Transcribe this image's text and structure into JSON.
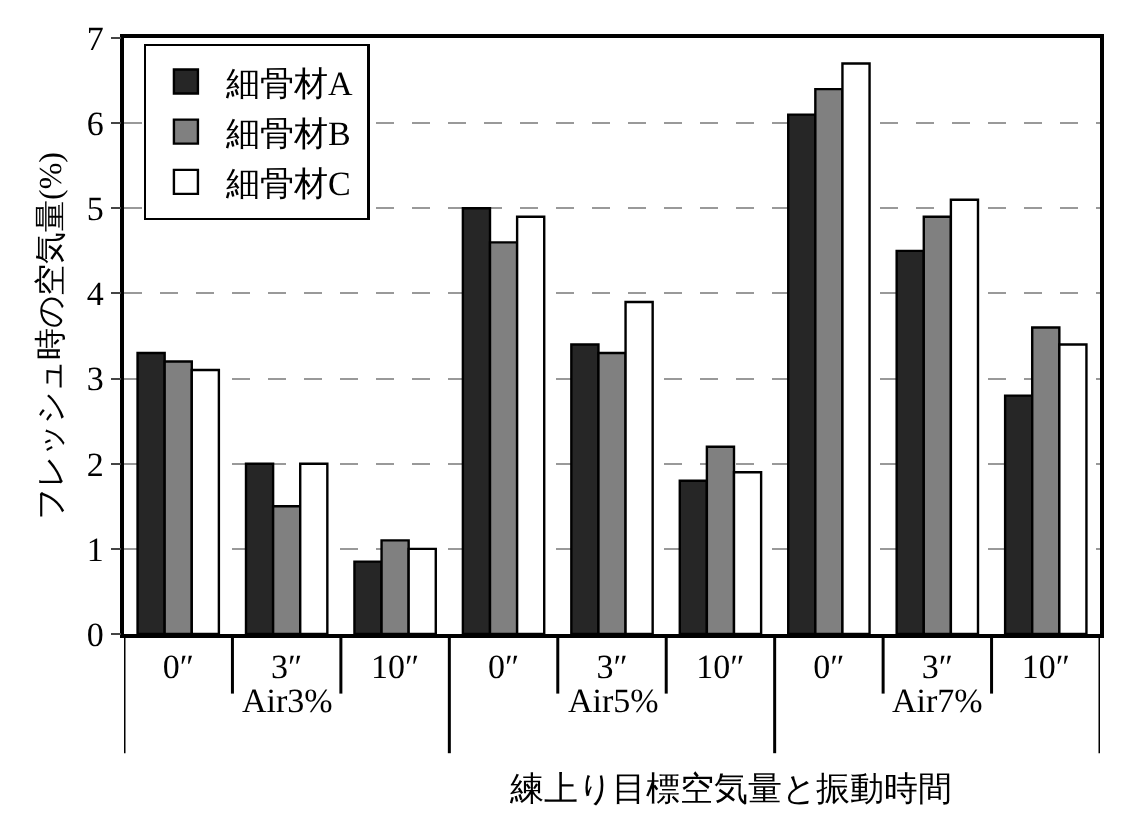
{
  "chart_data": {
    "type": "bar",
    "xlabel": "練上り目標空気量と振動時間",
    "ylabel": "フレッシュ時の空気量(%)",
    "categories": [
      "0″",
      "3″",
      "10″",
      "0″",
      "3″",
      "10″",
      "0″",
      "3″",
      "10″"
    ],
    "annotations": [
      "Air3%",
      "Air5%",
      "Air7%"
    ],
    "series": [
      {
        "name": "細骨材A",
        "color": "#262626",
        "values": [
          3.3,
          2.0,
          0.85,
          5.0,
          3.4,
          1.8,
          6.1,
          4.5,
          2.8
        ]
      },
      {
        "name": "細骨材B",
        "color": "#808080",
        "values": [
          3.2,
          1.5,
          1.1,
          4.6,
          3.3,
          2.2,
          6.4,
          4.9,
          3.6
        ]
      },
      {
        "name": "細骨材C",
        "color": "#ffffff",
        "values": [
          3.1,
          2.0,
          1.0,
          4.9,
          3.9,
          1.9,
          6.7,
          5.1,
          3.4
        ]
      }
    ],
    "ylim": [
      0,
      7
    ],
    "yticks": [
      0,
      1,
      2,
      3,
      4,
      5,
      6,
      7
    ],
    "grid": "y",
    "legend": "top left"
  }
}
